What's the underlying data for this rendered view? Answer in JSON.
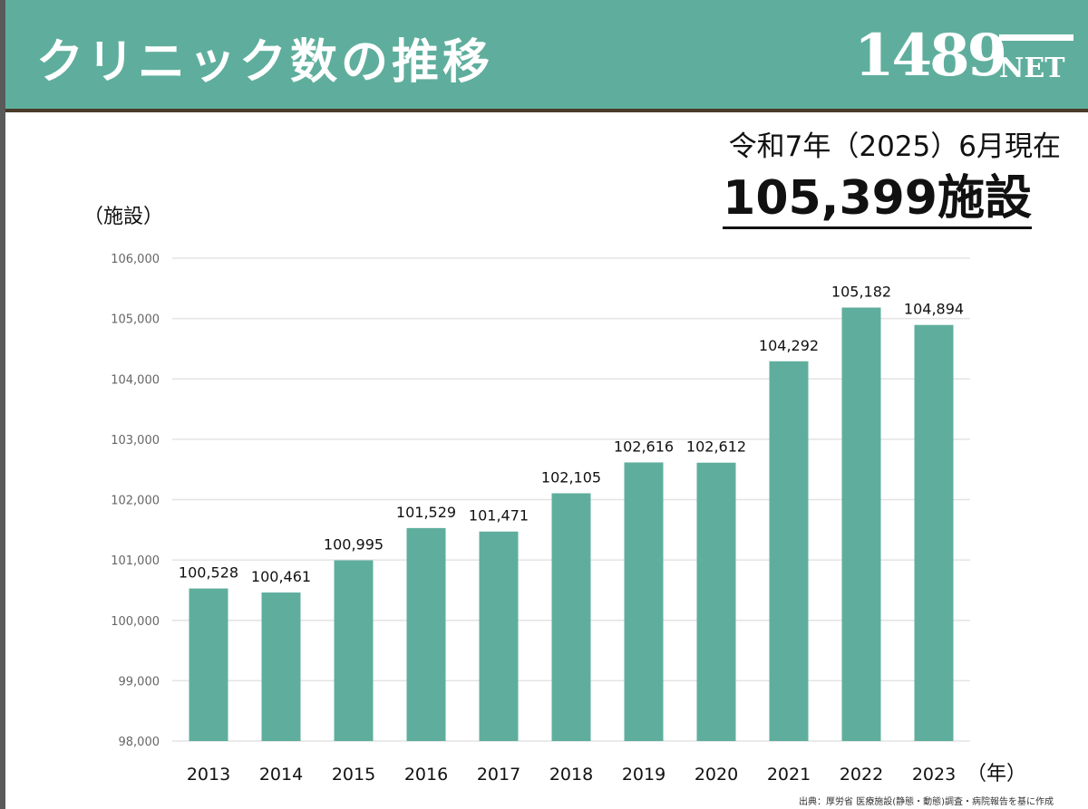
{
  "header": {
    "title": "クリニック数の推移",
    "logo_number": "1489",
    "logo_suffix": "NET"
  },
  "callout": {
    "date_text": "令和7年（2025）6月現在",
    "total_text": "105,399施設"
  },
  "source_text": "出典：厚労省 医療施設(静態・動態)調査・病院報告を基に作成",
  "colors": {
    "bar": "#5fae9d",
    "header": "#5fae9d",
    "header_border": "#4a3a28",
    "grid": "#e3e3e3"
  },
  "chart_data": {
    "type": "bar",
    "ylabel": "（施設）",
    "xlabel": "（年）",
    "ylim": [
      98000,
      106000
    ],
    "yticks": [
      98000,
      99000,
      100000,
      101000,
      102000,
      103000,
      104000,
      105000,
      106000
    ],
    "ytick_labels": [
      "98,000",
      "99,000",
      "100,000",
      "101,000",
      "102,000",
      "103,000",
      "104,000",
      "105,000",
      "106,000"
    ],
    "grid": true,
    "categories": [
      "2013",
      "2014",
      "2015",
      "2016",
      "2017",
      "2018",
      "2019",
      "2020",
      "2021",
      "2022",
      "2023"
    ],
    "values": [
      100528,
      100461,
      100995,
      101529,
      101471,
      102105,
      102616,
      102612,
      104292,
      105182,
      104894
    ],
    "data_labels": [
      "100,528",
      "100,461",
      "100,995",
      "101,529",
      "101,471",
      "102,105",
      "102,616",
      "102,612",
      "104,292",
      "105,182",
      "104,894"
    ]
  }
}
